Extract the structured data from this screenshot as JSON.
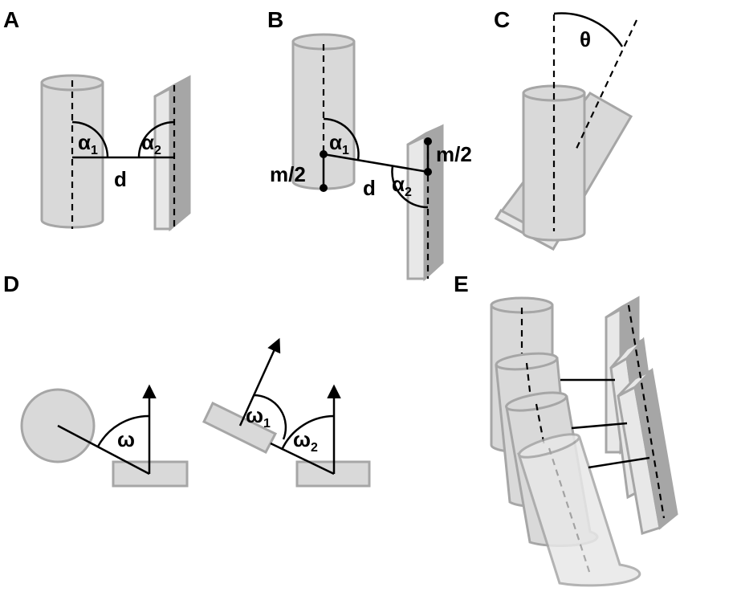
{
  "panels": {
    "a": {
      "letter": "A",
      "alpha1": "α",
      "alpha1_sub": "1",
      "alpha2": "α",
      "alpha2_sub": "2",
      "distance": "d"
    },
    "b": {
      "letter": "B",
      "alpha1": "α",
      "alpha1_sub": "1",
      "alpha2": "α",
      "alpha2_sub": "2",
      "distance": "d",
      "half_m_left": "m/2",
      "half_m_right": "m/2"
    },
    "c": {
      "letter": "C",
      "theta": "θ"
    },
    "d": {
      "letter": "D",
      "omega": "ω",
      "omega1": "ω",
      "omega1_sub": "1",
      "omega2": "ω",
      "omega2_sub": "2"
    },
    "e": {
      "letter": "E"
    }
  },
  "colors": {
    "shape_fill": "#d9d9d9",
    "shape_edge": "#a6a6a6",
    "plate_side": "#a6a6a6",
    "ink": "#000000"
  }
}
